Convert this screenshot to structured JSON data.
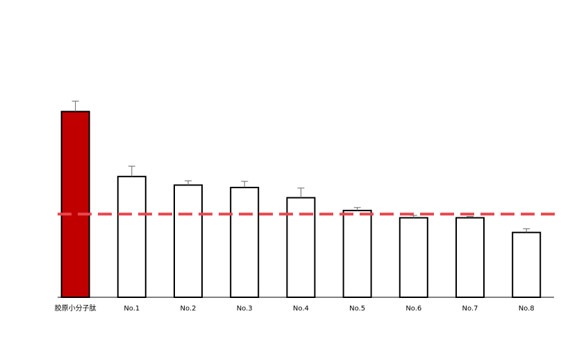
{
  "chart_data": {
    "type": "bar",
    "title": "",
    "xlabel": "",
    "ylabel": "",
    "categories": [
      "胶原小分子肽",
      "No.1",
      "No.2",
      "No.3",
      "No.4",
      "No.5",
      "No.6",
      "No.7",
      "No.8"
    ],
    "values": [
      100,
      65,
      60.4,
      59.1,
      53.6,
      46.7,
      42.8,
      42.8,
      34.9
    ],
    "errors": [
      5.6,
      5.6,
      2.3,
      3.3,
      5.2,
      1.6,
      1.3,
      0.7,
      2.0
    ],
    "ylim": [
      0,
      135
    ],
    "reference_line": 44.8,
    "grid": false,
    "colors": {
      "highlight_bar": "#c00000",
      "other_bars": "#ffffff",
      "bar_stroke": "#000000",
      "reference_line": "#e8474f",
      "error_bar": "#666666"
    }
  }
}
